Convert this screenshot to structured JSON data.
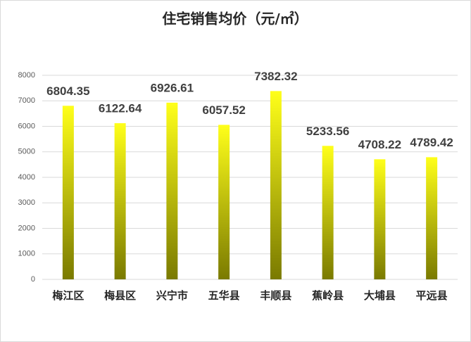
{
  "chart_data": {
    "type": "bar",
    "title": "住宅销售均价（元/㎡）",
    "categories": [
      "梅江区",
      "梅县区",
      "兴宁市",
      "五华县",
      "丰顺县",
      "蕉岭县",
      "大埔县",
      "平远县"
    ],
    "values": [
      6804.35,
      6122.64,
      6926.61,
      6057.52,
      7382.32,
      5233.56,
      4708.22,
      4789.42
    ],
    "color": {
      "top": "#ffff1a",
      "bottom": "#7a7a00"
    },
    "ylim": [
      0,
      8000
    ],
    "yticks": [
      0,
      1000,
      2000,
      3000,
      4000,
      5000,
      6000,
      7000,
      8000
    ],
    "grid": true
  }
}
